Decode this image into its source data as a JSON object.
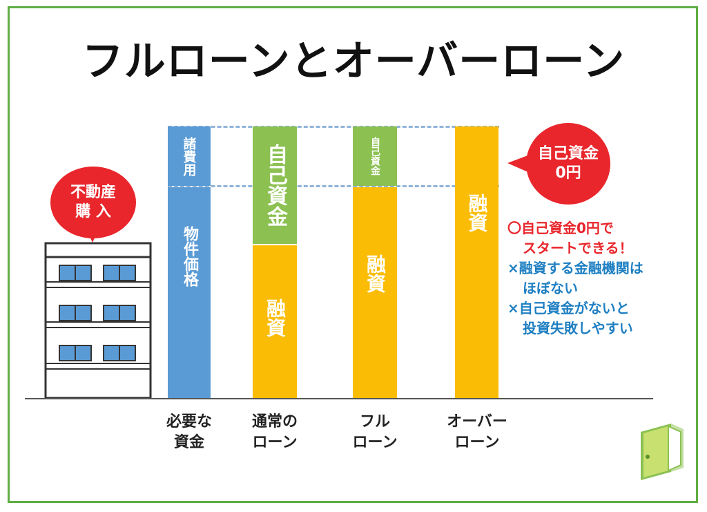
{
  "title": "フルローンとオーバーローン",
  "building_bubble": {
    "line1": "不動産",
    "line2": "購 入"
  },
  "columns": [
    {
      "label_line1": "必要な",
      "label_line2": "資金",
      "segments": [
        {
          "text": "諸費用"
        },
        {
          "text": "物件価格"
        }
      ]
    },
    {
      "label_line1": "通常の",
      "label_line2": "ローン",
      "segments": [
        {
          "text": "自己資金"
        },
        {
          "text": "融資"
        }
      ]
    },
    {
      "label_line1": "フル",
      "label_line2": "ローン",
      "segments": [
        {
          "text": "自己資金"
        },
        {
          "text": "融資"
        }
      ]
    },
    {
      "label_line1": "オーバー",
      "label_line2": "ローン",
      "segments": [
        {
          "text": "融資"
        }
      ]
    }
  ],
  "zero_bubble": {
    "line1": "自己資金",
    "line2": "0円"
  },
  "notes": [
    {
      "text": "〇自己資金0円で",
      "color": "#e8262c"
    },
    {
      "text": "スタートできる！",
      "color": "#e8262c"
    },
    {
      "text": "×融資する金融機関は",
      "color": "#1e7fc2"
    },
    {
      "text": "ほぼない",
      "color": "#1e7fc2"
    },
    {
      "text": "×自己資金がないと",
      "color": "#1e7fc2"
    },
    {
      "text": "投資失敗しやすい",
      "color": "#1e7fc2"
    }
  ],
  "colors": {
    "blue": "#5b9bd5",
    "green": "#8cc152",
    "orange": "#fbbc05",
    "red": "#e8262c",
    "frame": "#5fae44"
  },
  "logo_icon": "green-door-icon"
}
